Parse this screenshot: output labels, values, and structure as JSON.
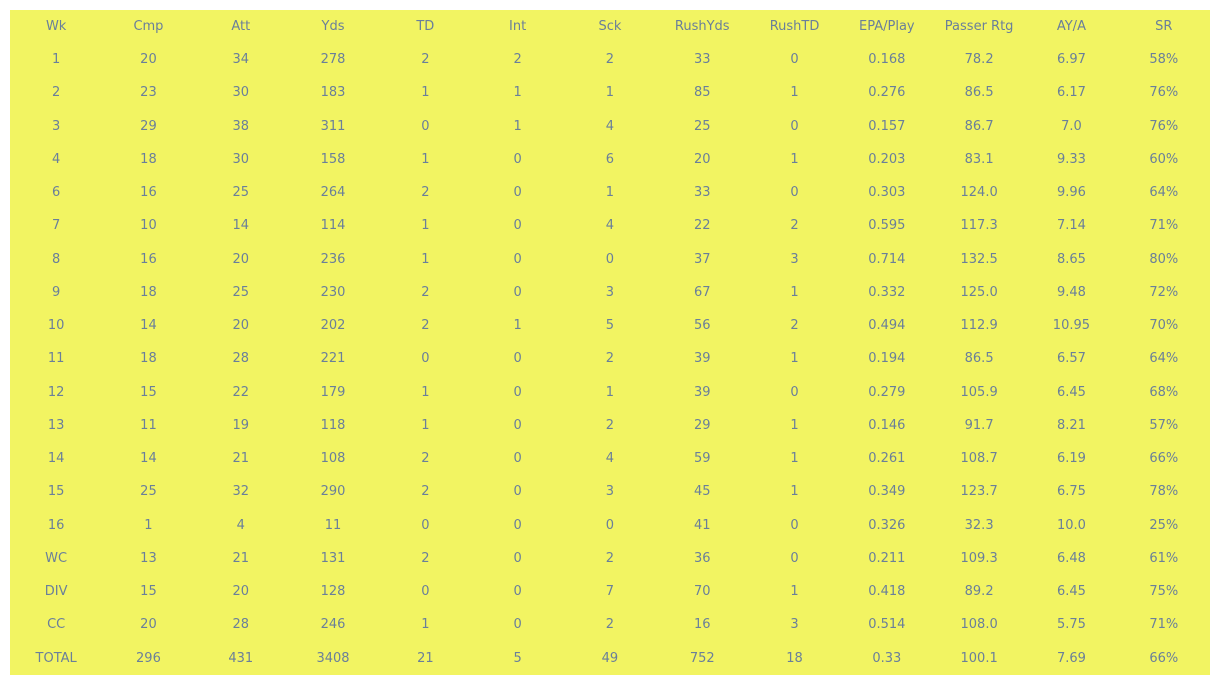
{
  "colors": {
    "background": "#f2f462",
    "text": "#6a7f9a"
  },
  "chart_data": {
    "type": "table",
    "title": "",
    "columns": [
      "Wk",
      "Cmp",
      "Att",
      "Yds",
      "TD",
      "Int",
      "Sck",
      "RushYds",
      "RushTD",
      "EPA/Play",
      "Passer Rtg",
      "AY/A",
      "SR"
    ],
    "rows": [
      [
        "1",
        "20",
        "34",
        "278",
        "2",
        "2",
        "2",
        "33",
        "0",
        "0.168",
        "78.2",
        "6.97",
        "58%"
      ],
      [
        "2",
        "23",
        "30",
        "183",
        "1",
        "1",
        "1",
        "85",
        "1",
        "0.276",
        "86.5",
        "6.17",
        "76%"
      ],
      [
        "3",
        "29",
        "38",
        "311",
        "0",
        "1",
        "4",
        "25",
        "0",
        "0.157",
        "86.7",
        "7.0",
        "76%"
      ],
      [
        "4",
        "18",
        "30",
        "158",
        "1",
        "0",
        "6",
        "20",
        "1",
        "0.203",
        "83.1",
        "9.33",
        "60%"
      ],
      [
        "6",
        "16",
        "25",
        "264",
        "2",
        "0",
        "1",
        "33",
        "0",
        "0.303",
        "124.0",
        "9.96",
        "64%"
      ],
      [
        "7",
        "10",
        "14",
        "114",
        "1",
        "0",
        "4",
        "22",
        "2",
        "0.595",
        "117.3",
        "7.14",
        "71%"
      ],
      [
        "8",
        "16",
        "20",
        "236",
        "1",
        "0",
        "0",
        "37",
        "3",
        "0.714",
        "132.5",
        "8.65",
        "80%"
      ],
      [
        "9",
        "18",
        "25",
        "230",
        "2",
        "0",
        "3",
        "67",
        "1",
        "0.332",
        "125.0",
        "9.48",
        "72%"
      ],
      [
        "10",
        "14",
        "20",
        "202",
        "2",
        "1",
        "5",
        "56",
        "2",
        "0.494",
        "112.9",
        "10.95",
        "70%"
      ],
      [
        "11",
        "18",
        "28",
        "221",
        "0",
        "0",
        "2",
        "39",
        "1",
        "0.194",
        "86.5",
        "6.57",
        "64%"
      ],
      [
        "12",
        "15",
        "22",
        "179",
        "1",
        "0",
        "1",
        "39",
        "0",
        "0.279",
        "105.9",
        "6.45",
        "68%"
      ],
      [
        "13",
        "11",
        "19",
        "118",
        "1",
        "0",
        "2",
        "29",
        "1",
        "0.146",
        "91.7",
        "8.21",
        "57%"
      ],
      [
        "14",
        "14",
        "21",
        "108",
        "2",
        "0",
        "4",
        "59",
        "1",
        "0.261",
        "108.7",
        "6.19",
        "66%"
      ],
      [
        "15",
        "25",
        "32",
        "290",
        "2",
        "0",
        "3",
        "45",
        "1",
        "0.349",
        "123.7",
        "6.75",
        "78%"
      ],
      [
        "16",
        "1",
        "4",
        "11",
        "0",
        "0",
        "0",
        "41",
        "0",
        "0.326",
        "32.3",
        "10.0",
        "25%"
      ],
      [
        "WC",
        "13",
        "21",
        "131",
        "2",
        "0",
        "2",
        "36",
        "0",
        "0.211",
        "109.3",
        "6.48",
        "61%"
      ],
      [
        "DIV",
        "15",
        "20",
        "128",
        "0",
        "0",
        "7",
        "70",
        "1",
        "0.418",
        "89.2",
        "6.45",
        "75%"
      ],
      [
        "CC",
        "20",
        "28",
        "246",
        "1",
        "0",
        "2",
        "16",
        "3",
        "0.514",
        "108.0",
        "5.75",
        "71%"
      ],
      [
        "TOTAL",
        "296",
        "431",
        "3408",
        "21",
        "5",
        "49",
        "752",
        "18",
        "0.33",
        "100.1",
        "7.69",
        "66%"
      ]
    ]
  }
}
